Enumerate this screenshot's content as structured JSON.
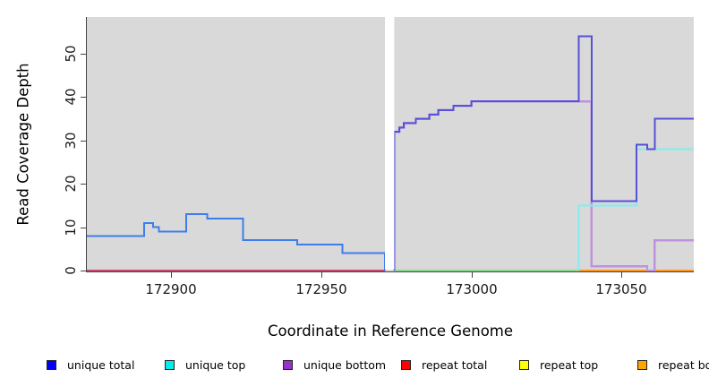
{
  "figure": {
    "xlabel": "Coordinate in Reference Genome",
    "ylabel": "Read Coverage Depth"
  },
  "legend": {
    "items": [
      {
        "label": "unique total",
        "color": "#0000FF"
      },
      {
        "label": "unique top",
        "color": "#00EEEE"
      },
      {
        "label": "unique bottom",
        "color": "#9932CC"
      },
      {
        "label": "repeat total",
        "color": "#FF0000"
      },
      {
        "label": "repeat top",
        "color": "#FFFF00"
      },
      {
        "label": "repeat bottom",
        "color": "#FFA500"
      }
    ]
  },
  "chart_data": {
    "type": "line",
    "subtype": "step-coverage",
    "title": "",
    "xlabel": "Coordinate in Reference Genome",
    "ylabel": "Read Coverage Depth",
    "xlim": [
      172872,
      173074
    ],
    "ylim": [
      0,
      58.6
    ],
    "xticks": [
      172900,
      172950,
      173000,
      173050
    ],
    "xtick_labels": [
      "172900",
      "172950",
      "173000",
      "173050"
    ],
    "yticks": [
      0,
      10,
      20,
      30,
      40,
      50
    ],
    "ytick_labels": [
      "0",
      "10",
      "20",
      "30",
      "40",
      "50"
    ],
    "panel_bg": "#D9D9D9",
    "grid": false,
    "legend_position": "bottom",
    "gap_x": [
      172971.2,
      172974.3
    ],
    "series": [
      {
        "name": "repeat-total-baseline-left",
        "legend": "repeat total",
        "color": "#C9496F",
        "width": 1.6,
        "points": [
          [
            172872,
            0
          ],
          [
            172971.2,
            0
          ]
        ]
      },
      {
        "name": "repeat-top-baseline-right",
        "legend": "repeat top",
        "color": "#8FD690",
        "width": 1.6,
        "points": [
          [
            172974.3,
            0
          ],
          [
            173035.7,
            0
          ]
        ]
      },
      {
        "name": "repeat-bottom-baseline-right",
        "legend": "repeat bottom",
        "color": "#FF951F",
        "width": 2,
        "points": [
          [
            173035.7,
            0
          ],
          [
            173074,
            0
          ]
        ]
      },
      {
        "name": "unique-total-left",
        "legend": "unique total",
        "color": "#3E7DEC",
        "width": 2,
        "points": [
          [
            172872,
            8
          ],
          [
            172891,
            8
          ],
          [
            172891,
            11
          ],
          [
            172894,
            11
          ],
          [
            172894,
            10
          ],
          [
            172896,
            10
          ],
          [
            172896,
            9
          ],
          [
            172905,
            9
          ],
          [
            172905,
            13
          ],
          [
            172912,
            13
          ],
          [
            172912,
            12
          ],
          [
            172924,
            12
          ],
          [
            172924,
            7
          ],
          [
            172942,
            7
          ],
          [
            172942,
            6
          ],
          [
            172957,
            6
          ],
          [
            172957,
            4
          ],
          [
            172971.2,
            4
          ],
          [
            172971.2,
            0
          ]
        ]
      },
      {
        "name": "unique-bottom-right",
        "legend": "unique bottom",
        "color": "#BE93DD",
        "width": 2.4,
        "points": [
          [
            172974.3,
            0
          ],
          [
            172974.3,
            32
          ],
          [
            172976,
            32
          ],
          [
            172976,
            33
          ],
          [
            172977.5,
            33
          ],
          [
            172977.5,
            34
          ],
          [
            172981.5,
            34
          ],
          [
            172981.5,
            35
          ],
          [
            172986,
            35
          ],
          [
            172986,
            36
          ],
          [
            172989,
            36
          ],
          [
            172989,
            37
          ],
          [
            172994,
            37
          ],
          [
            172994,
            38
          ],
          [
            173000,
            38
          ],
          [
            173000,
            39
          ],
          [
            173040,
            39
          ],
          [
            173040,
            1
          ],
          [
            173058.5,
            1
          ],
          [
            173058.5,
            0
          ],
          [
            173061,
            0
          ],
          [
            173061,
            7
          ],
          [
            173074,
            7
          ]
        ]
      },
      {
        "name": "unique-top-right",
        "legend": "unique top",
        "color": "#7CEFF2",
        "width": 2,
        "points": [
          [
            173035.7,
            0
          ],
          [
            173035.7,
            15
          ],
          [
            173055,
            15
          ],
          [
            173055,
            28
          ],
          [
            173074,
            28
          ]
        ]
      },
      {
        "name": "unique-total-right",
        "legend": "unique total",
        "color": "#5551D8",
        "width": 2,
        "points": [
          [
            172974.3,
            0
          ],
          [
            172974.3,
            32
          ],
          [
            172976,
            32
          ],
          [
            172976,
            33
          ],
          [
            172977.5,
            33
          ],
          [
            172977.5,
            34
          ],
          [
            172981.5,
            34
          ],
          [
            172981.5,
            35
          ],
          [
            172986,
            35
          ],
          [
            172986,
            36
          ],
          [
            172989,
            36
          ],
          [
            172989,
            37
          ],
          [
            172994,
            37
          ],
          [
            172994,
            38
          ],
          [
            173000,
            38
          ],
          [
            173000,
            39
          ],
          [
            173035.7,
            39
          ],
          [
            173035.7,
            54
          ],
          [
            173040,
            54
          ],
          [
            173040,
            16
          ],
          [
            173055,
            16
          ],
          [
            173055,
            29
          ],
          [
            173058.5,
            29
          ],
          [
            173058.5,
            28
          ],
          [
            173061,
            28
          ],
          [
            173061,
            35
          ],
          [
            173074,
            35
          ]
        ]
      }
    ]
  }
}
